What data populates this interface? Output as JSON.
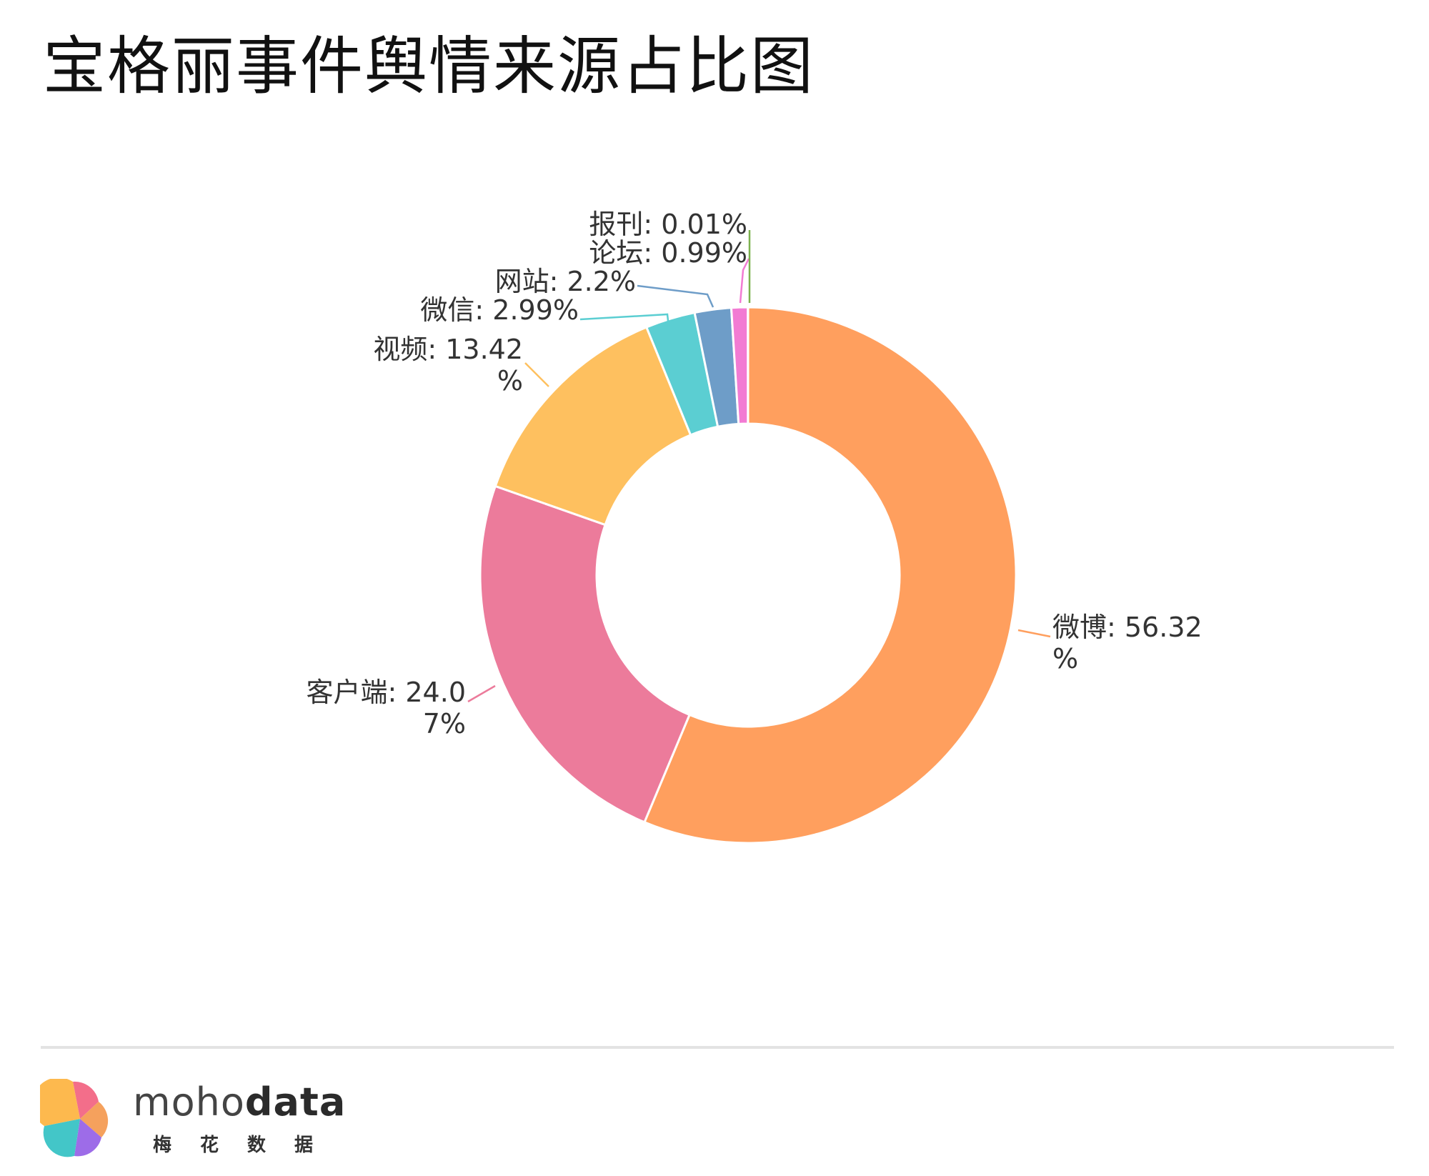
{
  "title": "宝格丽事件舆情来源占比图",
  "chart_data": {
    "type": "pie",
    "donut": true,
    "series": [
      {
        "name": "微博",
        "value": 56.32,
        "label_lines": [
          "微博: 56.32",
          "%"
        ],
        "color": "#FF9F5E"
      },
      {
        "name": "客户端",
        "value": 24.07,
        "label_lines": [
          "客户端: 24.0",
          "7%"
        ],
        "color": "#EC7B9B"
      },
      {
        "name": "视频",
        "value": 13.42,
        "label_lines": [
          "视频: 13.42",
          "%"
        ],
        "color": "#FEC05F"
      },
      {
        "name": "微信",
        "value": 2.99,
        "label_lines": [
          "微信: 2.99%"
        ],
        "color": "#5BCED2"
      },
      {
        "name": "网站",
        "value": 2.2,
        "label_lines": [
          "网站: 2.2%"
        ],
        "color": "#6E9DC8"
      },
      {
        "name": "论坛",
        "value": 0.99,
        "label_lines": [
          "论坛: 0.99%"
        ],
        "color": "#F27BD3"
      },
      {
        "name": "报刊",
        "value": 0.01,
        "label_lines": [
          "报刊: 0.01%"
        ],
        "color": "#7DB24F"
      }
    ]
  },
  "footer": {
    "brand_light": "moho",
    "brand_bold": "data",
    "brand_sub": "梅花数据"
  }
}
